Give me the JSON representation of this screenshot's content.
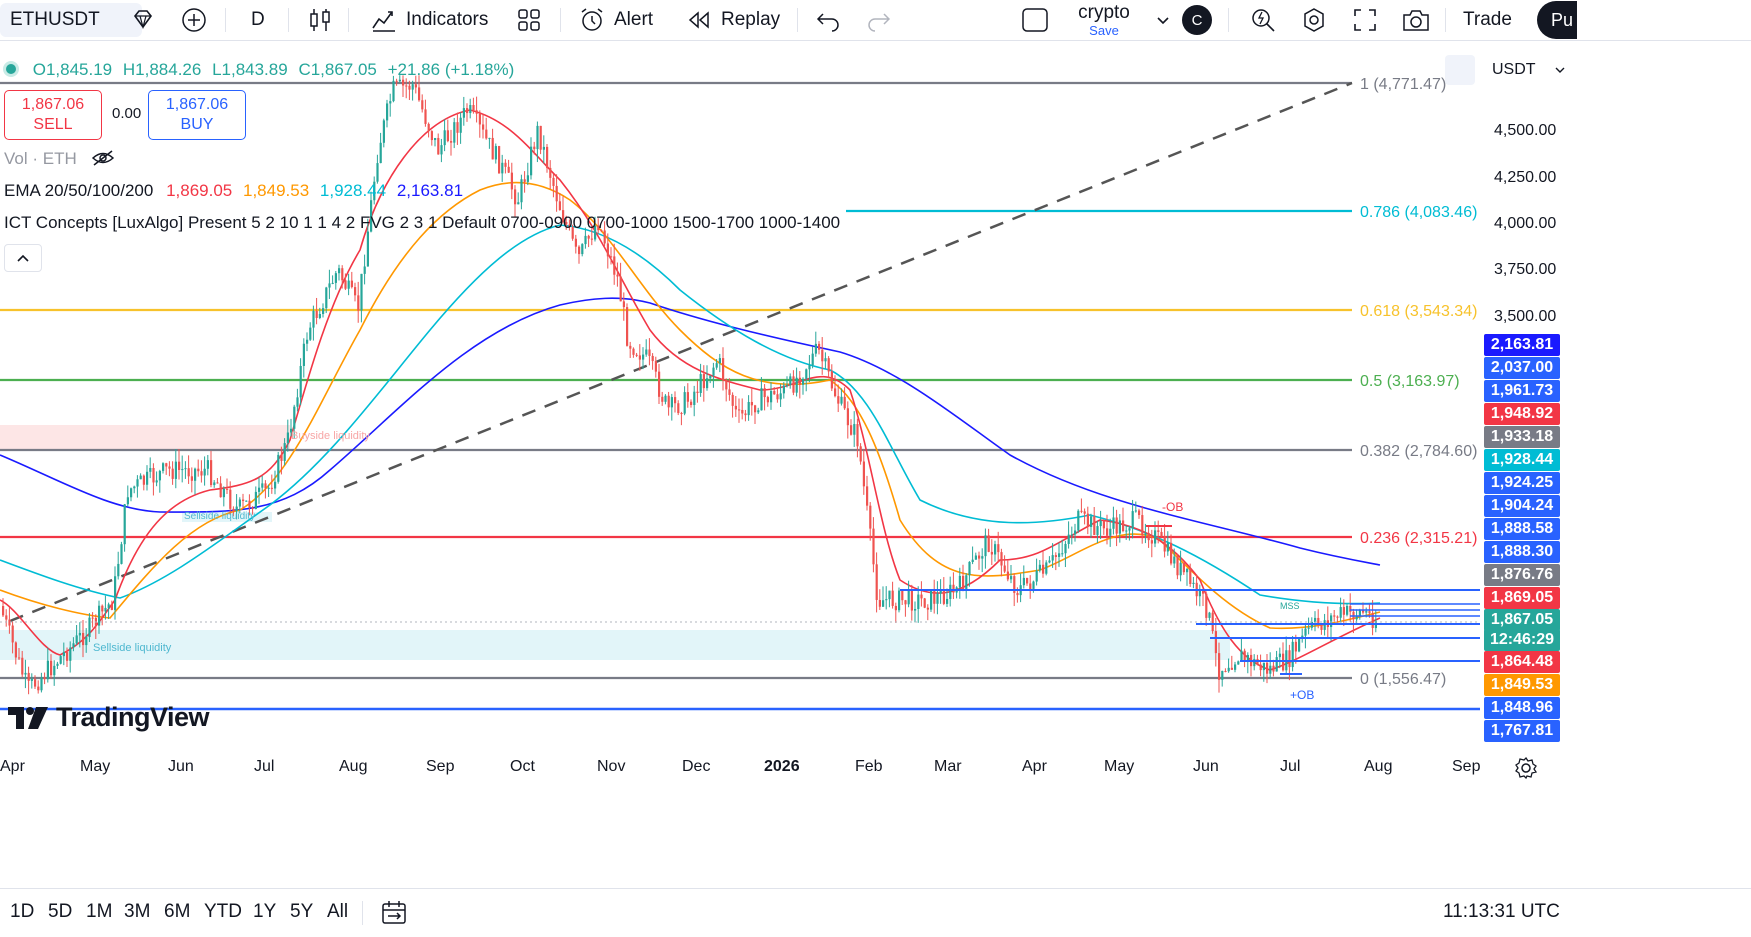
{
  "toolbar": {
    "symbol": "ETHUSDT",
    "interval": "D",
    "indicators_label": "Indicators",
    "alert_label": "Alert",
    "replay_label": "Replay",
    "layout_name": "crypto",
    "layout_save": "Save",
    "avatar_letter": "C",
    "trade_label": "Trade",
    "publish_label": "Pu"
  },
  "legend": {
    "ohlc_o": "O1,845.19",
    "ohlc_h": "H1,884.26",
    "ohlc_l": "L1,843.89",
    "ohlc_c": "C1,867.05",
    "change": "+21.86 (+1.18%)",
    "sell_price": "1,867.06",
    "sell_label": "SELL",
    "spread": "0.00",
    "buy_price": "1,867.06",
    "buy_label": "BUY",
    "vol_label": "Vol · ETH",
    "ema_label": "EMA 20/50/100/200",
    "ema20": "1,869.05",
    "ema50": "1,849.53",
    "ema100": "1,928.44",
    "ema200": "2,163.81",
    "ict_label": "ICT Concepts [LuxAlgo] Present 5 2 10 1 1 4 2 FVG 2 3 1 Default 0700-0900 0700-1000 1500-1700 1000-1400",
    "currency": "USDT"
  },
  "fib_levels": [
    {
      "label": "1 (4,771.47)",
      "color": "#787b86"
    },
    {
      "label": "0.786 (4,083.46)",
      "color": "#00bcd4"
    },
    {
      "label": "0.618 (3,543.34)",
      "color": "#f7c22b"
    },
    {
      "label": "0.5 (3,163.97)",
      "color": "#4caf50"
    },
    {
      "label": "0.382 (2,784.60)",
      "color": "#787b86"
    },
    {
      "label": "0.236 (2,315.21)",
      "color": "#f23645"
    },
    {
      "label": "0 (1,556.47)",
      "color": "#787b86"
    }
  ],
  "price_axis": [
    "4,500.00",
    "4,250.00",
    "4,000.00",
    "3,750.00",
    "3,500.00"
  ],
  "price_labels": [
    {
      "text": "2,163.81",
      "color": "#1a1aff"
    },
    {
      "text": "2,037.00",
      "color": "#2962ff"
    },
    {
      "text": "1,961.73",
      "color": "#2962ff"
    },
    {
      "text": "1,948.92",
      "color": "#f23645"
    },
    {
      "text": "1,933.18",
      "color": "#787b86"
    },
    {
      "text": "1,928.44",
      "color": "#00bcd4"
    },
    {
      "text": "1,924.25",
      "color": "#2962ff"
    },
    {
      "text": "1,904.24",
      "color": "#2962ff"
    },
    {
      "text": "1,888.58",
      "color": "#2962ff"
    },
    {
      "text": "1,888.30",
      "color": "#2962ff"
    },
    {
      "text": "1,876.76",
      "color": "#787b86"
    },
    {
      "text": "1,869.05",
      "color": "#f23645"
    },
    {
      "text": "1,867.05",
      "color": "#26a69a"
    },
    {
      "text": "12:46:29",
      "color": "#26a69a"
    },
    {
      "text": "1,864.48",
      "color": "#f23645"
    },
    {
      "text": "1,849.53",
      "color": "#ff9800"
    },
    {
      "text": "1,848.96",
      "color": "#2962ff"
    },
    {
      "text": "1,767.81",
      "color": "#2962ff"
    }
  ],
  "annotations": {
    "buyside": "Buyside liquidity",
    "sellside": "Sellside liquidity",
    "sellside2": "Sellside liquidity",
    "neg_ob": "-OB",
    "pos_ob": "+OB",
    "mss": "MSS"
  },
  "time_axis": [
    "Apr",
    "May",
    "Jun",
    "Jul",
    "Aug",
    "Sep",
    "Oct",
    "Nov",
    "Dec",
    "2026",
    "Feb",
    "Mar",
    "Apr",
    "May",
    "Jun",
    "Jul",
    "Aug",
    "Sep"
  ],
  "timeframes": [
    "1D",
    "5D",
    "1M",
    "3M",
    "6M",
    "YTD",
    "1Y",
    "5Y",
    "All"
  ],
  "clock": "11:13:31 UTC",
  "watermark": "TradingView",
  "colors": {
    "up": "#26a69a",
    "down": "#ef5350",
    "ema20": "#f23645",
    "ema50": "#ff9800",
    "ema100": "#00bcd4",
    "ema200": "#1a1aff"
  }
}
